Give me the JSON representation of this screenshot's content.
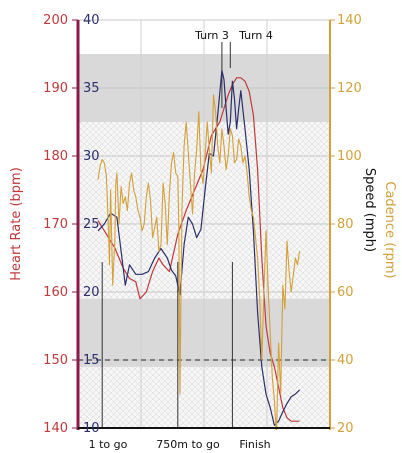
{
  "chart_data": {
    "type": "line",
    "title": "",
    "x_annotations": [
      "1 to go",
      "750m to go",
      "Finish"
    ],
    "top_annotations": [
      "Turn 3",
      "Turn 4"
    ],
    "axes": {
      "heart_rate": {
        "label": "Heart Rate (bpm)",
        "ticks": [
          "200",
          "190",
          "180",
          "170",
          "160",
          "150",
          "140"
        ],
        "ylim": [
          140,
          200
        ],
        "color": "#c0393b"
      },
      "speed": {
        "label": "Speed (mph)",
        "ticks": [
          "40",
          "35",
          "30",
          "25",
          "20",
          "15",
          "10"
        ],
        "ylim": [
          10,
          40
        ],
        "color": "#2b2f6b"
      },
      "cadence": {
        "label": "Cadence (rpm)",
        "ticks": [
          "140",
          "120",
          "100",
          "80",
          "60",
          "40",
          "20"
        ],
        "ylim": [
          20,
          140
        ],
        "color": "#d4a03a"
      }
    },
    "x_range": [
      0,
      100
    ],
    "bands_heart_rate": [
      [
        185,
        195
      ],
      [
        149,
        159
      ]
    ],
    "hatched_range_heart_rate": [
      140,
      185
    ],
    "reference_line_speed": 15,
    "series": [
      {
        "axis": "heart_rate",
        "color": "#c0393b",
        "x": [
          0,
          4,
          8,
          10,
          12,
          15,
          18,
          20,
          23,
          26,
          29,
          31,
          34,
          38,
          42,
          46,
          50,
          54,
          58,
          60,
          62,
          64,
          66,
          68,
          70,
          72,
          74,
          76,
          78,
          80,
          82,
          84,
          86,
          88,
          90,
          92,
          94,
          96
        ],
        "values": [
          170.5,
          168.5,
          166.5,
          165,
          163.5,
          162,
          161.5,
          159,
          160,
          163,
          165,
          164,
          163,
          168.5,
          172,
          175,
          178,
          183,
          185,
          187,
          189,
          190.5,
          191.5,
          191.5,
          191,
          189.5,
          186,
          178,
          165,
          155,
          151,
          149,
          146,
          143,
          141.5,
          141,
          141,
          141
        ]
      },
      {
        "axis": "speed",
        "color": "#2b2f6b",
        "x": [
          0,
          3,
          6,
          9,
          11,
          13,
          15,
          18,
          21,
          24,
          27,
          30,
          33,
          35,
          37,
          39,
          41,
          43,
          45,
          47,
          49,
          51,
          53,
          55,
          57,
          59,
          60,
          61,
          62,
          63,
          64,
          65,
          66,
          67,
          68,
          70,
          72,
          74,
          76,
          78,
          80,
          82,
          84,
          86,
          88,
          90,
          92,
          94,
          96
        ],
        "values": [
          24.5,
          25,
          25.8,
          25.5,
          23,
          20.5,
          22,
          21.3,
          21.3,
          21.5,
          22.5,
          23.2,
          22.5,
          21.6,
          21.2,
          19.8,
          23.5,
          25.5,
          25,
          24,
          24.6,
          27.5,
          30.2,
          30,
          33,
          36.3,
          35.6,
          33.5,
          31.6,
          32.5,
          35.5,
          34.2,
          32,
          33.5,
          34.8,
          32,
          29,
          24.5,
          18.5,
          14.5,
          12.5,
          11.5,
          10.2,
          10.5,
          11.2,
          11.8,
          12.3,
          12.5,
          12.8
        ]
      },
      {
        "axis": "cadence",
        "color": "#d4a03a",
        "x": [
          0,
          1,
          2,
          3,
          4,
          5,
          5.5,
          6,
          7,
          8,
          8.5,
          9,
          10,
          11,
          12,
          13,
          14,
          15,
          16,
          17,
          18,
          19,
          20,
          21,
          22,
          23,
          24,
          25,
          26,
          27,
          28,
          29,
          30,
          31,
          32,
          33,
          34,
          35,
          36,
          37,
          38,
          38.5,
          39,
          40,
          41,
          42,
          43,
          44,
          45,
          46,
          47,
          48,
          49,
          50,
          51,
          52,
          53,
          54,
          55,
          56,
          57,
          58,
          59,
          60,
          61,
          62,
          63,
          64,
          65,
          66,
          67,
          68,
          69,
          70,
          71,
          72,
          73,
          74,
          75,
          76,
          77,
          78,
          79,
          80,
          81,
          82,
          83,
          84,
          85,
          86,
          87,
          88,
          89,
          90,
          91,
          92,
          93,
          94,
          95,
          96
        ],
        "values": [
          93,
          97,
          99,
          98,
          94,
          78,
          68,
          90,
          62,
          75,
          92,
          95,
          80,
          91,
          86,
          88,
          84,
          92,
          95,
          90,
          88,
          84,
          82,
          78,
          80,
          88,
          92,
          87,
          76,
          79,
          82,
          72,
          74,
          92,
          86,
          74,
          89,
          98,
          101,
          95,
          94,
          78,
          30,
          85,
          103,
          110,
          101,
          92,
          83,
          95,
          102,
          113,
          96,
          92,
          100,
          110,
          102,
          95,
          118,
          113,
          103,
          98,
          108,
          103,
          96,
          100,
          108,
          106,
          98,
          99,
          105,
          103,
          98,
          100,
          95,
          88,
          84,
          82,
          76,
          70,
          58,
          40,
          60,
          78,
          62,
          48,
          35,
          28,
          18,
          45,
          30,
          62,
          55,
          75,
          66,
          60,
          65,
          70,
          68,
          72
        ]
      }
    ],
    "grid": true,
    "legend": "none"
  }
}
